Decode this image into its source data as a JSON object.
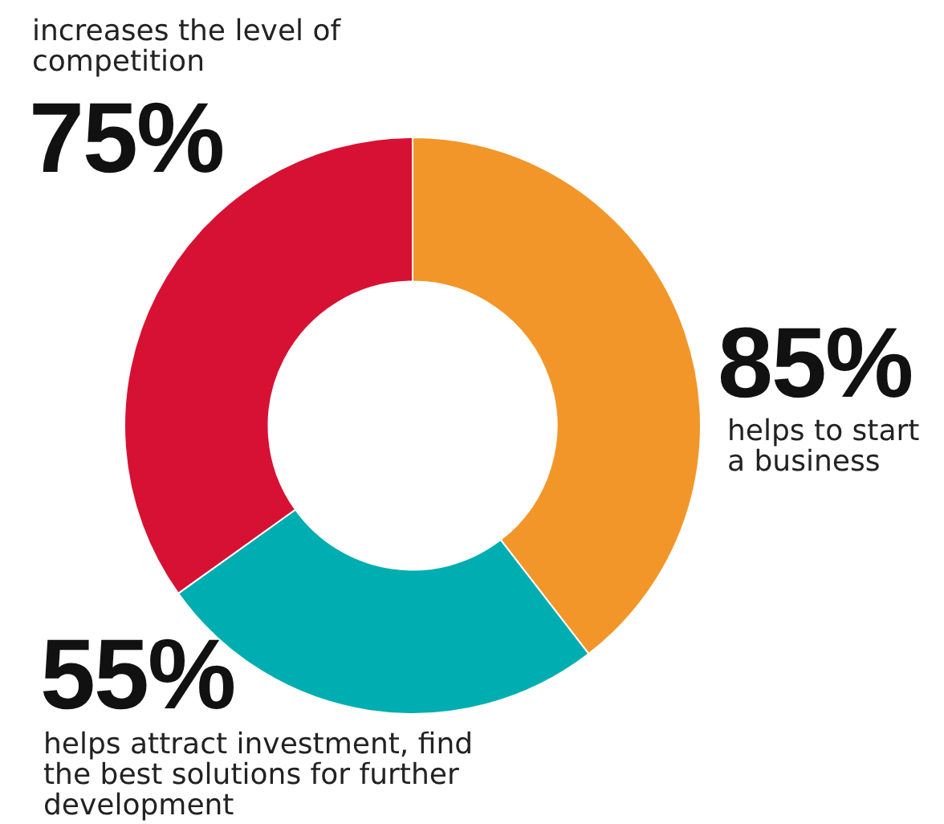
{
  "chart_data": {
    "type": "donut",
    "categories": [
      "helps to start a business",
      "helps attract investment, find the best solutions for further development",
      "increases the level of competition"
    ],
    "values": [
      85,
      55,
      75
    ],
    "colors": [
      "#f39629",
      "#00adb0",
      "#d71134"
    ],
    "value_labels": [
      "85%",
      "55%",
      "75%"
    ],
    "legend": false
  }
}
